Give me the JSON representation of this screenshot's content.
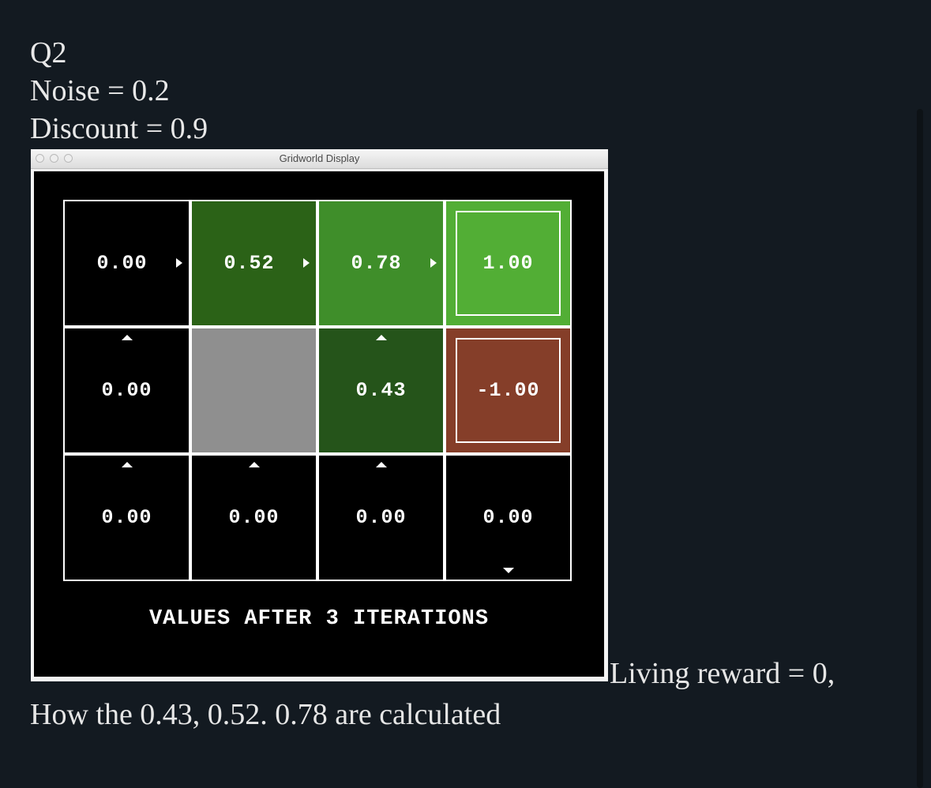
{
  "post": {
    "question_label": "Q2",
    "noise_text": "Noise = 0.2",
    "discount_text": "Discount = 0.9",
    "living_reward_text": "Living reward = 0,",
    "question_text": "How the 0.43, 0.52. 0.78 are calculated"
  },
  "window": {
    "title": "Gridworld Display",
    "footer": "VALUES AFTER 3 ITERATIONS"
  },
  "grid": {
    "rows": [
      {
        "cells": [
          {
            "value": "0.00",
            "color": "#000000",
            "arrow": "right"
          },
          {
            "value": "0.52",
            "color": "#2b6217",
            "arrow": "right"
          },
          {
            "value": "0.78",
            "color": "#3f8e2a",
            "arrow": "right"
          },
          {
            "value": "1.00",
            "color": "#52ae35",
            "terminal": true
          }
        ]
      },
      {
        "cells": [
          {
            "value": "0.00",
            "color": "#000000",
            "arrow": "up"
          },
          {
            "value": "",
            "color": "#8f8f8f",
            "wall": true
          },
          {
            "value": "0.43",
            "color": "#25541a",
            "arrow": "up"
          },
          {
            "value": "-1.00",
            "color": "#853e29",
            "terminal": true
          }
        ]
      },
      {
        "cells": [
          {
            "value": "0.00",
            "color": "#000000",
            "arrow": "up"
          },
          {
            "value": "0.00",
            "color": "#000000",
            "arrow": "up"
          },
          {
            "value": "0.00",
            "color": "#000000",
            "arrow": "up"
          },
          {
            "value": "0.00",
            "color": "#000000",
            "arrow": "down"
          }
        ]
      }
    ]
  }
}
